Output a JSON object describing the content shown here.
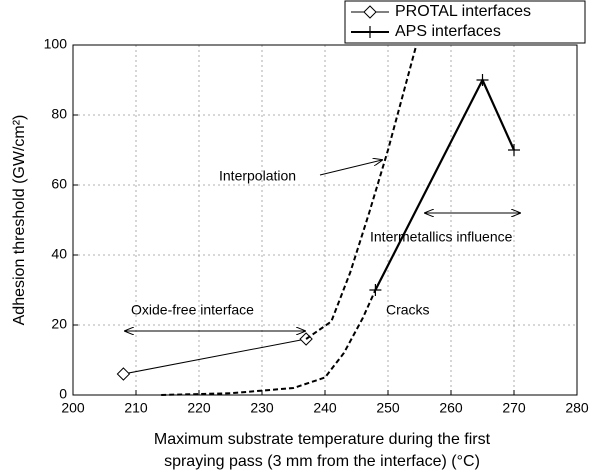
{
  "chart_data": {
    "type": "line",
    "ylabel": "Adhesion threshold (GW/cm²)",
    "xlabel": [
      "Maximum substrate temperature during the first",
      "spraying pass (3 mm from the interface) (°C)"
    ],
    "xlim": [
      200,
      280
    ],
    "xticks": [
      200,
      210,
      220,
      230,
      240,
      250,
      260,
      270,
      280
    ],
    "ylim": [
      0,
      100
    ],
    "yticks": [
      0,
      20,
      40,
      60,
      80,
      100
    ],
    "grid": true,
    "legend": "top-right",
    "series": [
      {
        "name": "PROTAL interfaces",
        "color": "#000000",
        "marker": "diamond",
        "style": "solid",
        "x": [
          208,
          237
        ],
        "values": [
          6,
          16
        ]
      },
      {
        "name": "APS interfaces",
        "color": "#000000",
        "marker": "plus",
        "style": "solid",
        "x": [
          248,
          265,
          270
        ],
        "values": [
          30,
          90,
          70
        ]
      },
      {
        "color": "#000000",
        "style": "dashed",
        "x": [
          237,
          241,
          244,
          247,
          250,
          253,
          254.5
        ],
        "values": [
          16,
          21,
          35,
          52,
          70,
          90,
          100
        ]
      },
      {
        "color": "#000000",
        "style": "dashed",
        "x": [
          214,
          225,
          235,
          240,
          243,
          246,
          248
        ],
        "values": [
          0,
          0.5,
          2,
          5,
          12,
          22,
          30
        ]
      }
    ],
    "annotations": [
      "Interpolation",
      "Oxide-free interface",
      "Cracks",
      "Intermetallics influence"
    ]
  }
}
